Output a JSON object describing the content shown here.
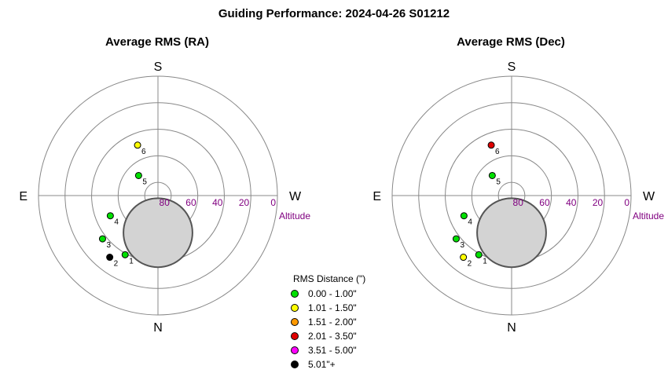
{
  "title": "Guiding Performance: 2024-04-26 S01212",
  "legend": {
    "title": "RMS Distance (\")",
    "items": [
      {
        "label": "0.00 - 1.00\"",
        "color": "#00e000"
      },
      {
        "label": "1.01 - 1.50\"",
        "color": "#ffff00"
      },
      {
        "label": "1.51 - 2.00\"",
        "color": "#ff9900"
      },
      {
        "label": "2.01 - 3.50\"",
        "color": "#e00000"
      },
      {
        "label": "3.51 - 5.00\"",
        "color": "#ff00ff"
      },
      {
        "label": "5.01\"+",
        "color": "#000000"
      }
    ]
  },
  "chart_data": [
    {
      "type": "scatter",
      "title": "Average RMS (RA)",
      "directions": {
        "top": "S",
        "bottom": "N",
        "left": "E",
        "right": "W"
      },
      "altitude_ticks": [
        "80",
        "60",
        "40",
        "20",
        "0"
      ],
      "altitude_label": "Altitude",
      "moon": {
        "altitude_deg": 62,
        "azimuth_deg": 0,
        "angular_radius_deg": 26
      },
      "points": [
        {
          "label": "1",
          "azimuth_deg": 29,
          "altitude_deg": 39,
          "color": "#00e000"
        },
        {
          "label": "2",
          "azimuth_deg": 38,
          "altitude_deg": 31,
          "color": "#000000"
        },
        {
          "label": "3",
          "azimuth_deg": 52,
          "altitude_deg": 37,
          "color": "#00e000"
        },
        {
          "label": "4",
          "azimuth_deg": 67,
          "altitude_deg": 51,
          "color": "#00e000"
        },
        {
          "label": "5",
          "azimuth_deg": 136,
          "altitude_deg": 69,
          "color": "#00e000"
        },
        {
          "label": "6",
          "azimuth_deg": 158,
          "altitude_deg": 49,
          "color": "#ffff00"
        }
      ]
    },
    {
      "type": "scatter",
      "title": "Average RMS (Dec)",
      "directions": {
        "top": "S",
        "bottom": "N",
        "left": "E",
        "right": "W"
      },
      "altitude_ticks": [
        "80",
        "60",
        "40",
        "20",
        "0"
      ],
      "altitude_label": "Altitude",
      "moon": {
        "altitude_deg": 62,
        "azimuth_deg": 0,
        "angular_radius_deg": 26
      },
      "points": [
        {
          "label": "1",
          "azimuth_deg": 29,
          "altitude_deg": 39,
          "color": "#00e000"
        },
        {
          "label": "2",
          "azimuth_deg": 38,
          "altitude_deg": 31,
          "color": "#ffff00"
        },
        {
          "label": "3",
          "azimuth_deg": 52,
          "altitude_deg": 37,
          "color": "#00e000"
        },
        {
          "label": "4",
          "azimuth_deg": 67,
          "altitude_deg": 51,
          "color": "#00e000"
        },
        {
          "label": "5",
          "azimuth_deg": 136,
          "altitude_deg": 69,
          "color": "#00e000"
        },
        {
          "label": "6",
          "azimuth_deg": 158,
          "altitude_deg": 49,
          "color": "#e00000"
        }
      ]
    }
  ]
}
